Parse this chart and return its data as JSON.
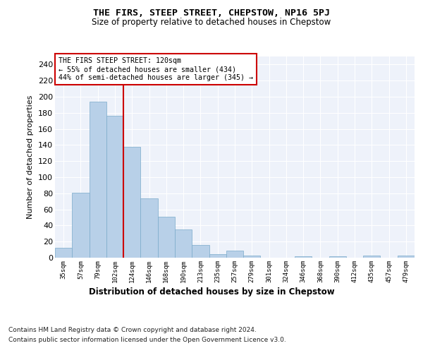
{
  "title": "THE FIRS, STEEP STREET, CHEPSTOW, NP16 5PJ",
  "subtitle": "Size of property relative to detached houses in Chepstow",
  "xlabel": "Distribution of detached houses by size in Chepstow",
  "ylabel": "Number of detached properties",
  "bar_color": "#b8d0e8",
  "bar_edgecolor": "#7aaaca",
  "background_color": "#eef2fa",
  "grid_color": "#ffffff",
  "categories": [
    "35sqm",
    "57sqm",
    "79sqm",
    "102sqm",
    "124sqm",
    "146sqm",
    "168sqm",
    "190sqm",
    "213sqm",
    "235sqm",
    "257sqm",
    "279sqm",
    "301sqm",
    "324sqm",
    "346sqm",
    "368sqm",
    "390sqm",
    "412sqm",
    "435sqm",
    "457sqm",
    "479sqm"
  ],
  "values": [
    12,
    81,
    194,
    176,
    138,
    74,
    51,
    35,
    16,
    4,
    9,
    3,
    0,
    0,
    2,
    0,
    2,
    0,
    3,
    0,
    3
  ],
  "ylim": [
    0,
    250
  ],
  "yticks": [
    0,
    20,
    40,
    60,
    80,
    100,
    120,
    140,
    160,
    180,
    200,
    220,
    240
  ],
  "vline_x": 3.5,
  "vline_color": "#cc0000",
  "annotation_text": "THE FIRS STEEP STREET: 120sqm\n← 55% of detached houses are smaller (434)\n44% of semi-detached houses are larger (345) →",
  "annotation_box_color": "#ffffff",
  "annotation_box_edgecolor": "#cc0000",
  "footer_line1": "Contains HM Land Registry data © Crown copyright and database right 2024.",
  "footer_line2": "Contains public sector information licensed under the Open Government Licence v3.0."
}
